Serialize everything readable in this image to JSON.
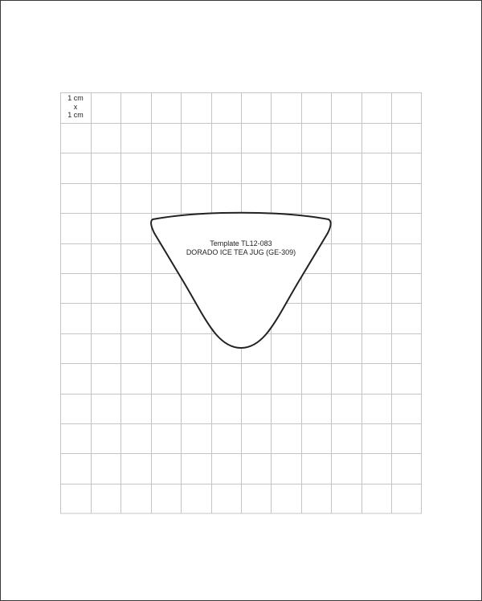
{
  "scale_label": {
    "line1": "1 cm",
    "line2": "x",
    "line3": "1 cm"
  },
  "template": {
    "code": "Template TL12-083",
    "product": "DORADO ICE TEA JUG (GE-309)"
  },
  "grid": {
    "columns": 12,
    "rows": 14
  },
  "colors": {
    "grid_line": "#c4c4c4",
    "outline": "#222222"
  }
}
